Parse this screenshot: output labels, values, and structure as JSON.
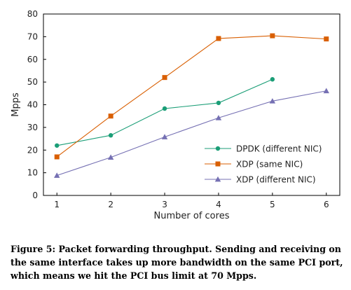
{
  "chart_data": {
    "type": "line",
    "title": "",
    "xlabel": "Number of cores",
    "ylabel": "Mpps",
    "x": [
      1,
      2,
      3,
      4,
      5,
      6
    ],
    "xticks": [
      "1",
      "2",
      "3",
      "4",
      "5",
      "6"
    ],
    "ylim": [
      0,
      80
    ],
    "yticks": [
      "0",
      "10",
      "20",
      "30",
      "40",
      "50",
      "60",
      "70",
      "80"
    ],
    "grid": false,
    "legend_position": "bottom-right",
    "series": [
      {
        "name": "DPDK (different NIC)",
        "marker": "circle",
        "color": "#1b9e77",
        "x": [
          1,
          2,
          3,
          4,
          5
        ],
        "values": [
          22,
          26.5,
          38.3,
          40.8,
          51.2
        ]
      },
      {
        "name": "XDP (same NIC)",
        "marker": "square",
        "color": "#d95f02",
        "x": [
          1,
          2,
          3,
          4,
          5,
          6
        ],
        "values": [
          17,
          35,
          52,
          69.2,
          70.4,
          69
        ]
      },
      {
        "name": "XDP (different NIC)",
        "marker": "triangle",
        "color": "#7570b3",
        "x": [
          1,
          2,
          3,
          4,
          5,
          6
        ],
        "values": [
          8.8,
          16.8,
          25.8,
          34.2,
          41.6,
          46.1
        ]
      }
    ]
  },
  "caption": {
    "text": "Figure 5:  Packet forwarding throughput. Sending and receiving on the same interface takes up more bandwidth on the same PCI port, which means we hit the PCI bus limit at 70 Mpps."
  }
}
